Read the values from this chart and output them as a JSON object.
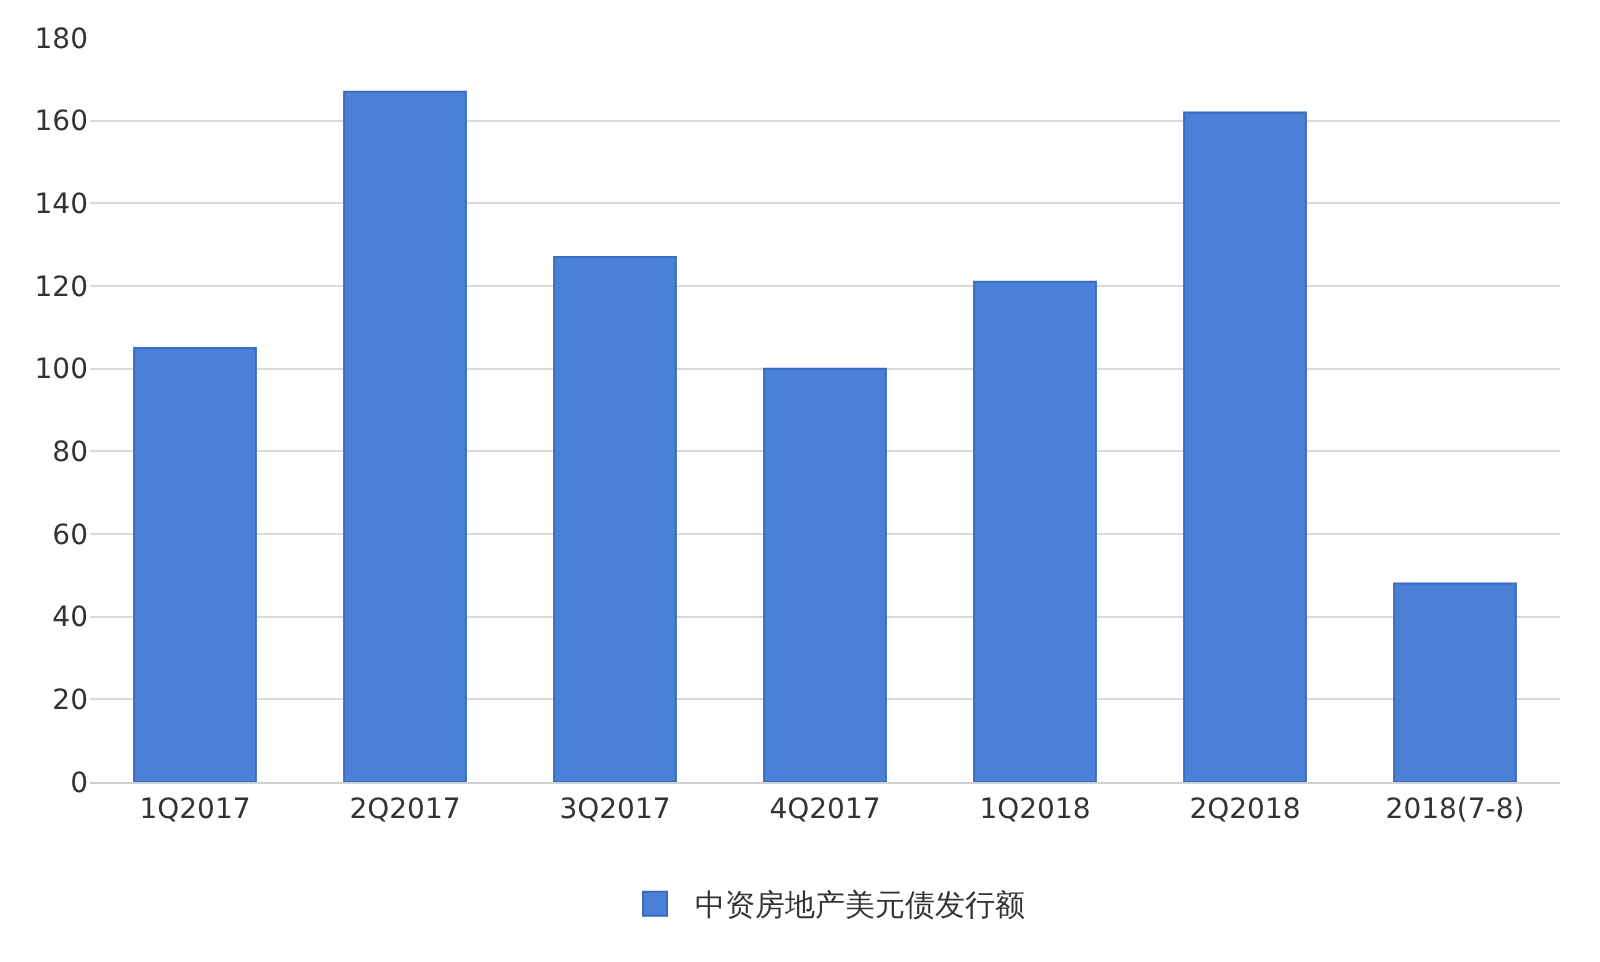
{
  "chart_data": {
    "type": "bar",
    "categories": [
      "1Q2017",
      "2Q2017",
      "3Q2017",
      "4Q2017",
      "1Q2018",
      "2Q2018",
      "2018(7-8)"
    ],
    "series": [
      {
        "name": "中资房地产美元债发行额",
        "color": "#4a80d6",
        "values": [
          105,
          167,
          127,
          100,
          121,
          162,
          48
        ]
      }
    ],
    "ylim": [
      0,
      180
    ],
    "yticks": [
      0,
      20,
      40,
      60,
      80,
      100,
      120,
      140,
      160,
      180
    ],
    "grid": "y",
    "legend": "bottom"
  }
}
